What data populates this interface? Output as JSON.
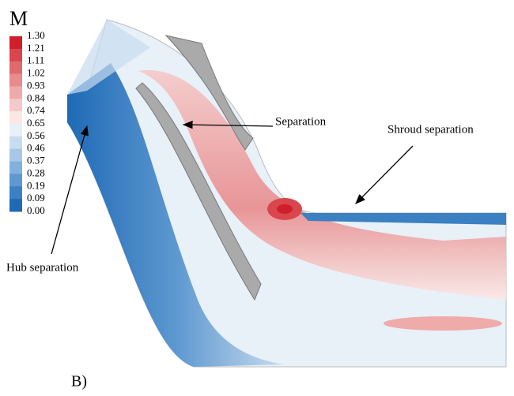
{
  "colorbar": {
    "title": "M",
    "levels": [
      "1.30",
      "1.21",
      "1.11",
      "1.02",
      "0.93",
      "0.84",
      "0.74",
      "0.65",
      "0.56",
      "0.46",
      "0.37",
      "0.28",
      "0.19",
      "0.09",
      "0.00"
    ],
    "colors": [
      "#cf1f2a",
      "#d9464d",
      "#e06a6d",
      "#e88b8c",
      "#efaaaa",
      "#f5c9c8",
      "#fbe8e6",
      "#e8f0f8",
      "#c8dcef",
      "#a6c8e6",
      "#82b1dc",
      "#5d98d0",
      "#3b80c3",
      "#1f6ab5"
    ]
  },
  "annotations": {
    "separation": "Separation",
    "shroud": "Shroud separation",
    "hub": "Hub separation"
  },
  "panel_label": "B)"
}
